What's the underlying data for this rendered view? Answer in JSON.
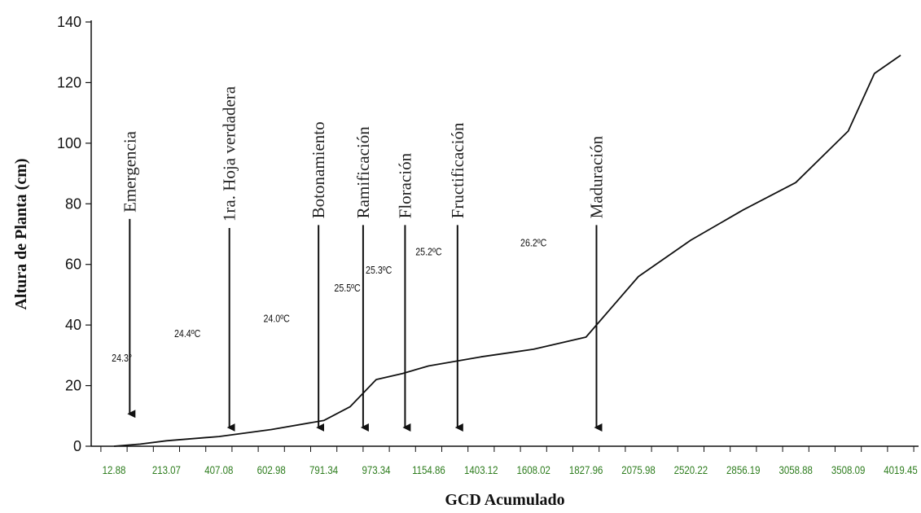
{
  "chart_data": {
    "type": "line",
    "xlabel": "GCD Acumulado",
    "ylabel": "Altura de Planta (cm)",
    "ylim": [
      0,
      140
    ],
    "yticks": [
      0,
      20,
      40,
      60,
      80,
      100,
      120,
      140
    ],
    "xtick_labels": [
      "12.88",
      "213.07",
      "407.08",
      "602.98",
      "791.34",
      "973.34",
      "1154.86",
      "1403.12",
      "1608.02",
      "1827.96",
      "2075.98",
      "2520.22",
      "2856.19",
      "3058.88",
      "3508.09",
      "4019.45"
    ],
    "series": [
      {
        "x": [
          0,
          0.5,
          1,
          2,
          3,
          4,
          4.5,
          5,
          5.5,
          6,
          7,
          8,
          9,
          10,
          11,
          12,
          13,
          14,
          14.5,
          15
        ],
        "y": [
          0,
          0.7,
          1.8,
          3.2,
          5.5,
          8.5,
          13,
          22,
          24,
          26.5,
          29.5,
          32,
          36,
          56,
          68,
          78,
          87,
          104,
          123,
          129
        ],
        "note_x": "x expressed as position index along the categorical GCD axis"
      }
    ],
    "stages": [
      {
        "label": "Emergencia",
        "x_index": 0.3,
        "arrow_top": 75,
        "arrow_bottom": 8
      },
      {
        "label": "1ra. Hoja verdadera",
        "x_index": 2.2,
        "arrow_top": 72,
        "arrow_bottom": 3.5
      },
      {
        "label": "Botonamiento",
        "x_index": 3.9,
        "arrow_top": 73,
        "arrow_bottom": 3.5
      },
      {
        "label": "Ramificación",
        "x_index": 4.75,
        "arrow_top": 73,
        "arrow_bottom": 3.5
      },
      {
        "label": "Floración",
        "x_index": 5.55,
        "arrow_top": 73,
        "arrow_bottom": 3.5
      },
      {
        "label": "Fructificación",
        "x_index": 6.55,
        "arrow_top": 73,
        "arrow_bottom": 3.5
      },
      {
        "label": "Maduración",
        "x_index": 9.2,
        "arrow_top": 73,
        "arrow_bottom": 3.5
      }
    ],
    "temperatures": [
      {
        "label": "24.3°",
        "x_index": 0.15,
        "y": 28
      },
      {
        "label": "24.4ºC",
        "x_index": 1.4,
        "y": 36
      },
      {
        "label": "24.0ºC",
        "x_index": 3.1,
        "y": 41
      },
      {
        "label": "25.5ºC",
        "x_index": 4.45,
        "y": 51
      },
      {
        "label": "25.3ºC",
        "x_index": 5.05,
        "y": 57
      },
      {
        "label": "25.2ºC",
        "x_index": 6.0,
        "y": 63
      },
      {
        "label": "26.2ºC",
        "x_index": 8.0,
        "y": 66
      }
    ]
  }
}
